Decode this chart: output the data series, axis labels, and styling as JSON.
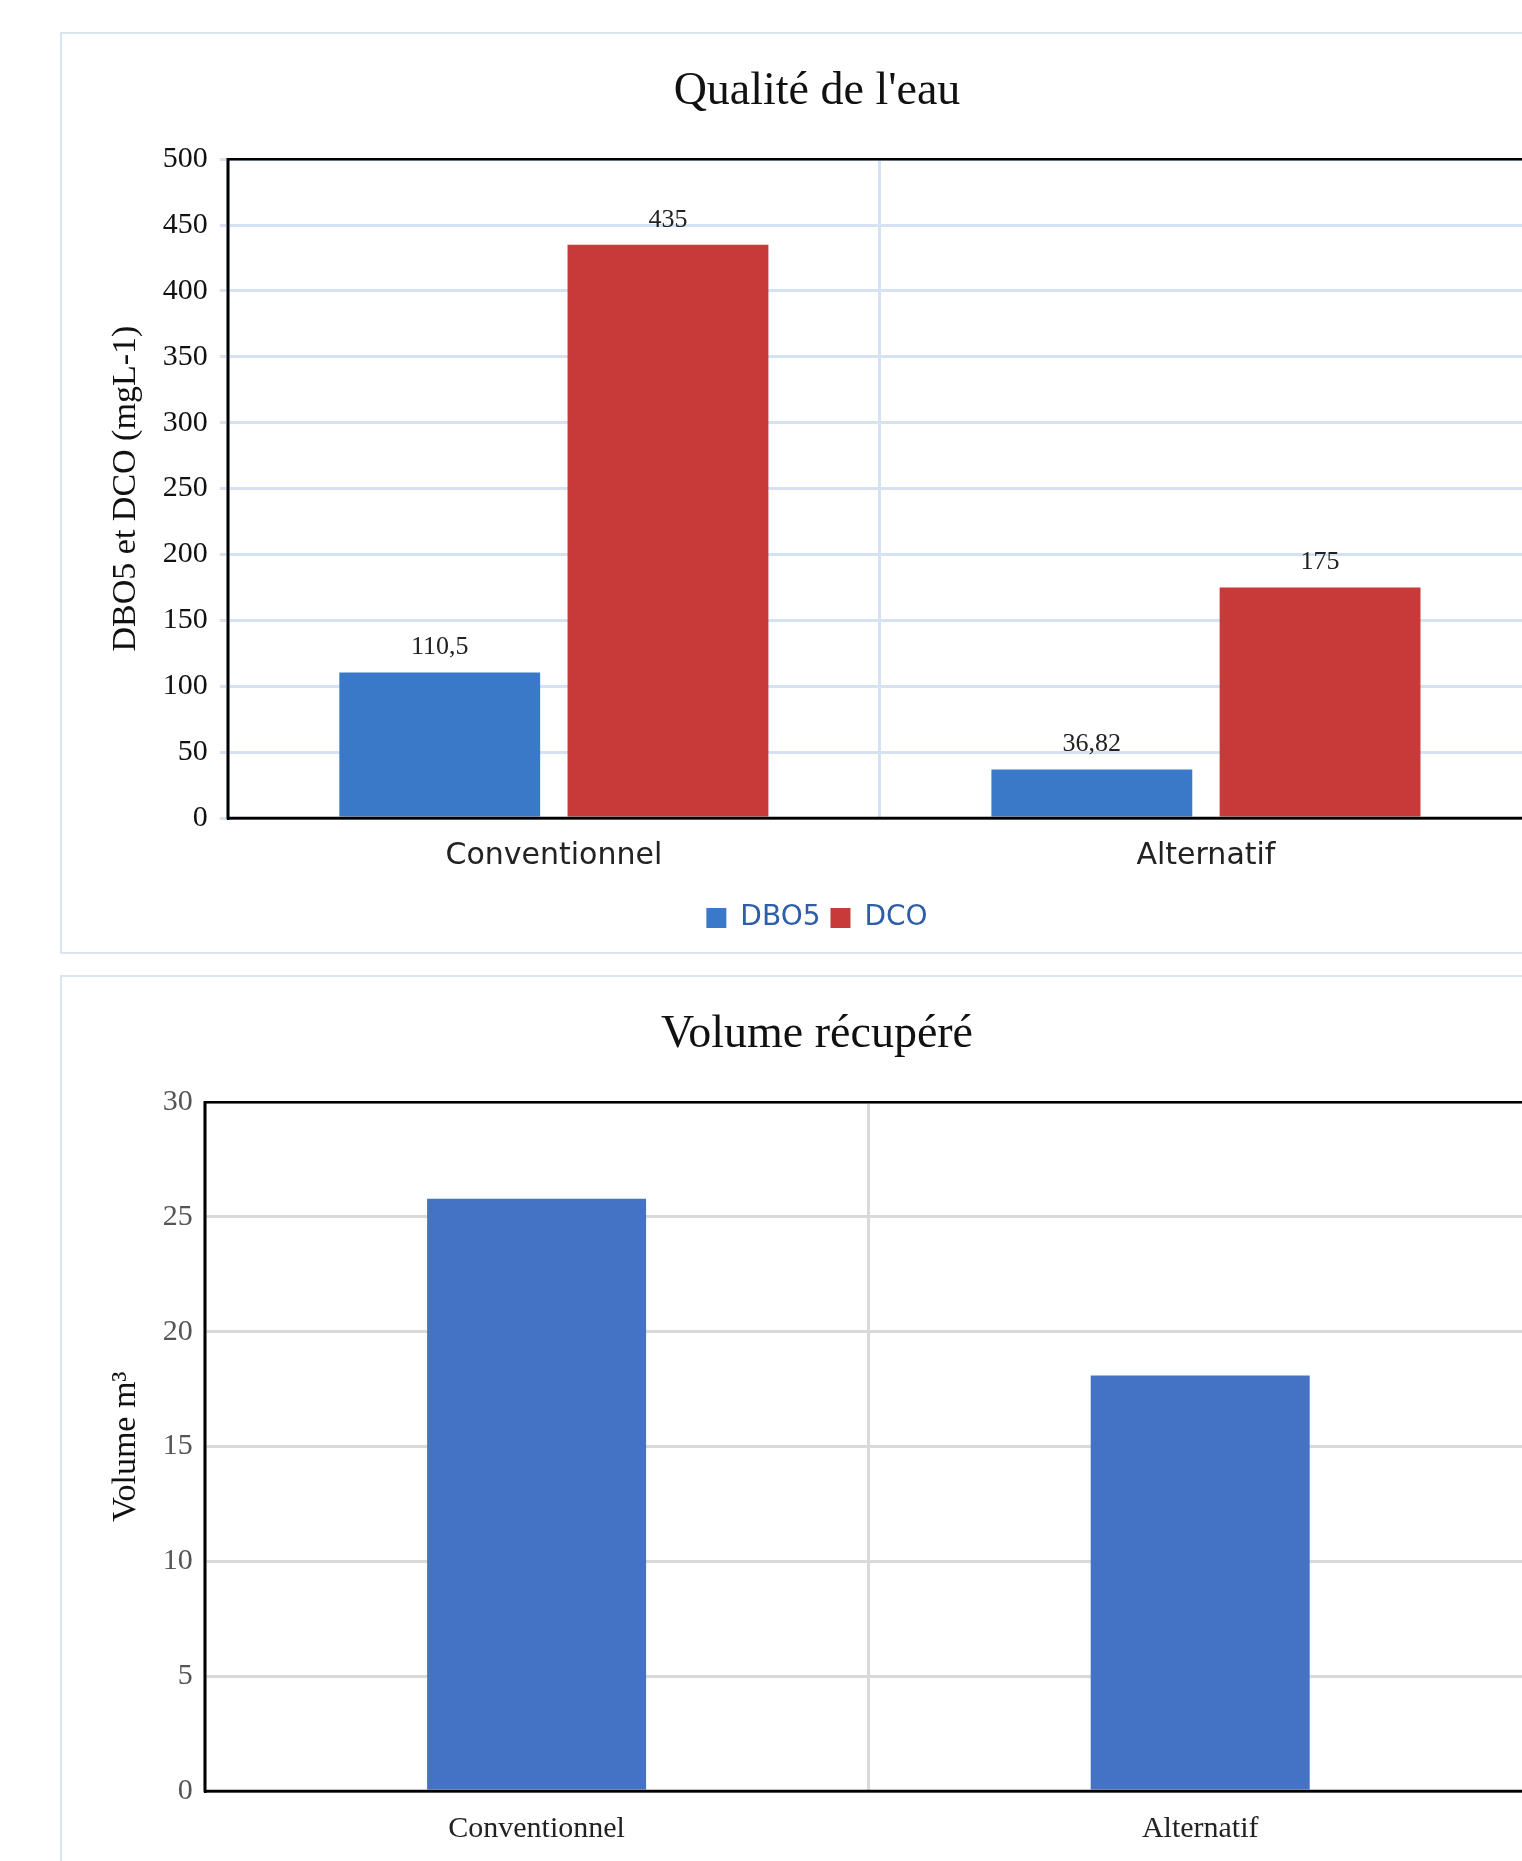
{
  "chart_data": [
    {
      "type": "bar",
      "title": "Qualité de l'eau",
      "ylabel": "DBO5 et DCO (mgL-1)",
      "categories": [
        "Conventionnel",
        "Alternatif"
      ],
      "series": [
        {
          "name": "DBO5",
          "color": "#3a78c8",
          "values": [
            110.5,
            36.82
          ],
          "value_labels": [
            "110,5",
            "36,82"
          ]
        },
        {
          "name": "DCO",
          "color": "#c83a3a",
          "values": [
            435,
            175
          ],
          "value_labels": [
            "435",
            "175"
          ]
        }
      ],
      "ylim": [
        0,
        500
      ],
      "yticks": [
        0,
        50,
        100,
        150,
        200,
        250,
        300,
        350,
        400,
        450,
        500
      ],
      "grid": true,
      "legend": "bottom"
    },
    {
      "type": "bar",
      "title": "Volume récupéré",
      "ylabel": "Volume m³",
      "categories": [
        "Conventionnel",
        "Alternatif"
      ],
      "series": [
        {
          "color": "#4472c4",
          "values": [
            25.8,
            18.1
          ]
        }
      ],
      "ylim": [
        0,
        30
      ],
      "yticks": [
        0,
        5,
        10,
        15,
        20,
        25,
        30
      ],
      "grid": true
    }
  ]
}
